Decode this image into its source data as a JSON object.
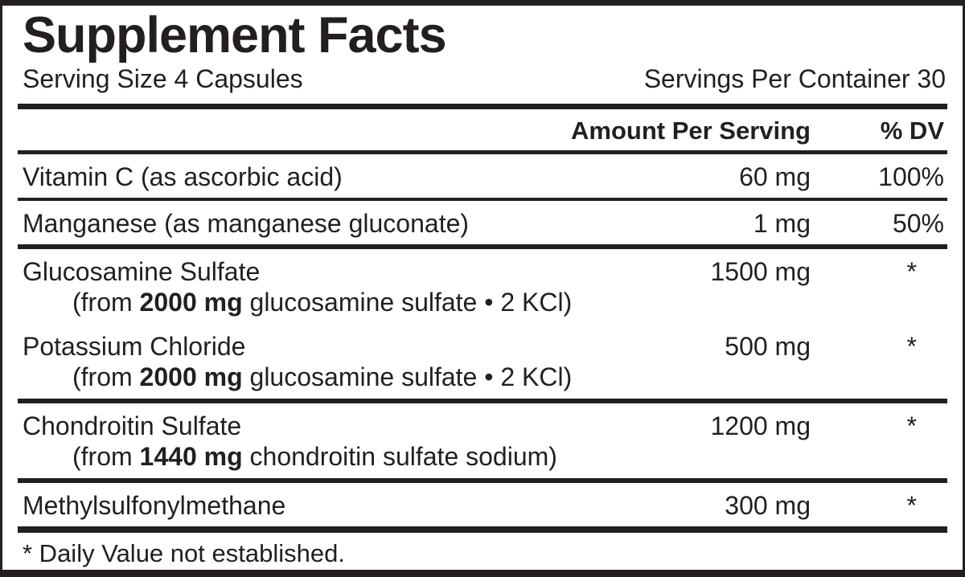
{
  "panel": {
    "title": "Supplement Facts",
    "serving_size": "Serving Size 4 Capsules",
    "servings_per_container": "Servings Per Container 30",
    "columns": {
      "amount": "Amount Per Serving",
      "dv": "% DV"
    },
    "rows": [
      {
        "name": "Vitamin C (as ascorbic acid)",
        "amount": "60 mg",
        "dv": "100%"
      },
      {
        "name": "Manganese (as manganese gluconate)",
        "amount": "1 mg",
        "dv": "50%"
      },
      {
        "name": "Glucosamine Sulfate",
        "amount": "1500 mg",
        "dv": "*",
        "sub": {
          "prefix": "(from ",
          "bold": "2000 mg",
          "rest": " glucosamine sulfate • 2 KCl)"
        }
      },
      {
        "name": "Potassium Chloride",
        "amount": "500 mg",
        "dv": "*",
        "sub": {
          "prefix": "(from ",
          "bold": "2000 mg",
          "rest": " glucosamine sulfate • 2 KCl)"
        }
      },
      {
        "name": "Chondroitin Sulfate",
        "amount": "1200 mg",
        "dv": "*",
        "sub": {
          "prefix": "(from ",
          "bold": "1440 mg",
          "rest": " chondroitin sulfate sodium)"
        }
      },
      {
        "name": "Methylsulfonylmethane",
        "amount": "300 mg",
        "dv": "*"
      }
    ],
    "footnote": "* Daily Value not established.",
    "colors": {
      "ink": "#231f20",
      "background": "#ffffff"
    }
  }
}
